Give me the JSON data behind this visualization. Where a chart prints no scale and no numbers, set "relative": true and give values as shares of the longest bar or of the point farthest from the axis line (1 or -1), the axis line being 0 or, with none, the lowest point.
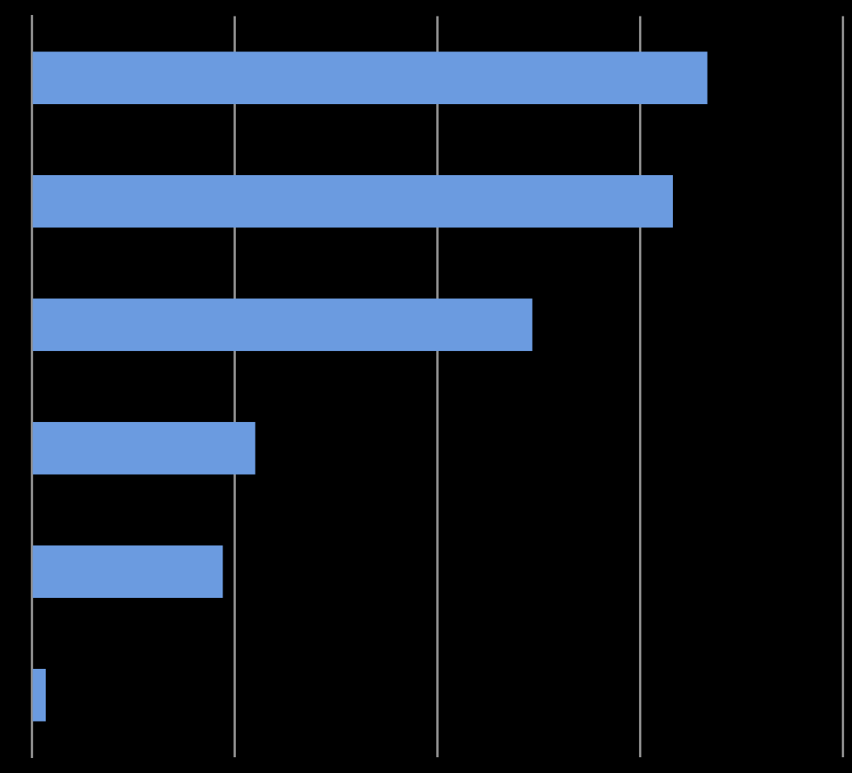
{
  "chart_data": {
    "type": "bar",
    "orientation": "horizontal",
    "relative": true,
    "grid": "x",
    "legend": false,
    "categories": [
      null,
      null,
      null,
      null,
      null,
      null
    ],
    "values": [
      1,
      0.949,
      0.741,
      0.331,
      0.283,
      0.021
    ],
    "color": "#6b9be0"
  }
}
